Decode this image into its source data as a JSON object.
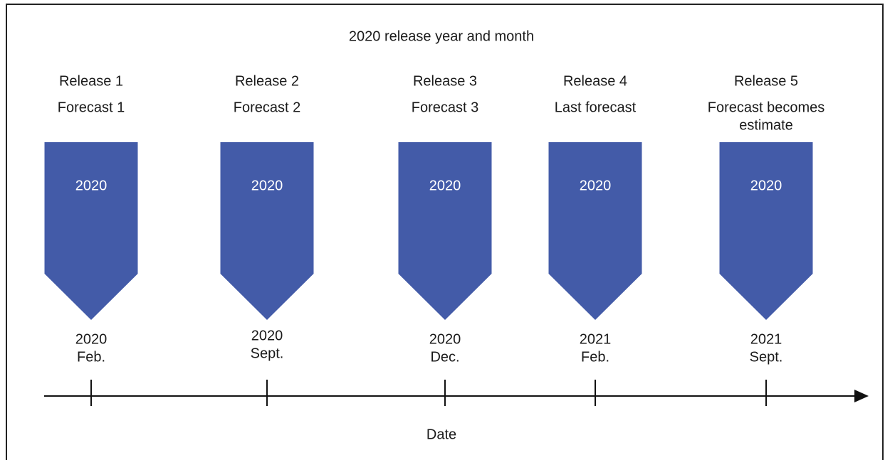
{
  "title": "2020 release year and month",
  "axis_label": "Date",
  "releases": [
    {
      "release": "Release 1",
      "forecast": [
        "Forecast 1"
      ],
      "year": "2020",
      "date_year": "2020",
      "date_month": "Feb."
    },
    {
      "release": "Release 2",
      "forecast": [
        "Forecast 2"
      ],
      "year": "2020",
      "date_year": "2020",
      "date_month": "Sept."
    },
    {
      "release": "Release 3",
      "forecast": [
        "Forecast 3"
      ],
      "year": "2020",
      "date_year": "2020",
      "date_month": "Dec."
    },
    {
      "release": "Release 4",
      "forecast": [
        "Last forecast"
      ],
      "year": "2020",
      "date_year": "2021",
      "date_month": "Feb."
    },
    {
      "release": "Release 5",
      "forecast": [
        "Forecast becomes",
        "estimate"
      ],
      "year": "2020",
      "date_year": "2021",
      "date_month": "Sept."
    }
  ]
}
